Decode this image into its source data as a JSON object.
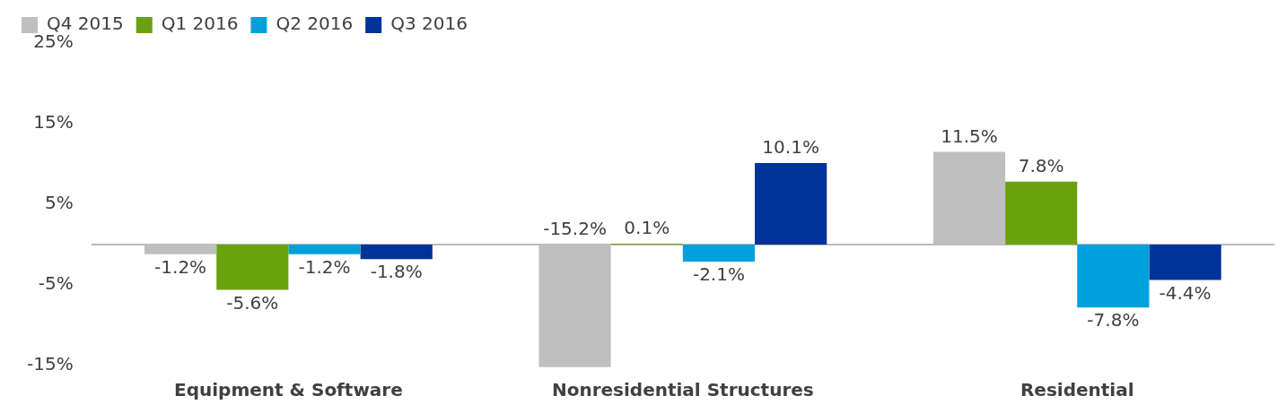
{
  "chart_data": {
    "type": "bar",
    "categories": [
      "Equipment & Software",
      "Nonresidential Structures",
      "Residential"
    ],
    "series": [
      {
        "name": "Q4 2015",
        "color": "#bfbfbf",
        "values": [
          -1.2,
          -15.2,
          11.5
        ],
        "value_labels": [
          "-1.2%",
          "-15.2%",
          "11.5%"
        ]
      },
      {
        "name": "Q1 2016",
        "color": "#6aa10f",
        "values": [
          -5.6,
          0.1,
          7.8
        ],
        "value_labels": [
          "-5.6%",
          "0.1%",
          "7.8%"
        ]
      },
      {
        "name": "Q2 2016",
        "color": "#00a0dc",
        "values": [
          -1.2,
          -2.1,
          -7.8
        ],
        "value_labels": [
          "-1.2%",
          "-2.1%",
          "-7.8%"
        ]
      },
      {
        "name": "Q3 2016",
        "color": "#003399",
        "values": [
          -1.8,
          10.1,
          -4.4
        ],
        "value_labels": [
          "-1.8%",
          "10.1%",
          "-4.4%"
        ]
      }
    ],
    "ylim": [
      -16,
      25
    ],
    "yticks": [
      {
        "value": 25,
        "label": "25%"
      },
      {
        "value": 15,
        "label": "15%"
      },
      {
        "value": 5,
        "label": "5%"
      },
      {
        "value": -5,
        "label": "-5%"
      },
      {
        "value": -15,
        "label": "-15%"
      }
    ],
    "grid": false,
    "legend": "top left"
  }
}
